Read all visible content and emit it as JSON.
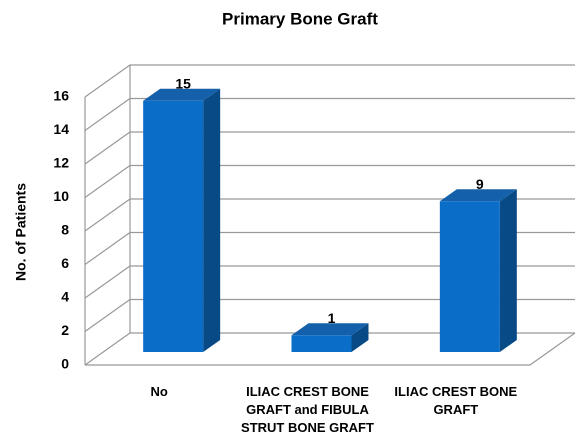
{
  "chart_data": {
    "type": "bar",
    "title": "Primary Bone Graft",
    "y_label": "No. of Patients",
    "categories": [
      "No",
      "ILIAC CREST BONE GRAFT and FIBULA STRUT BONE GRAFT",
      "ILIAC CREST BONE GRAFT"
    ],
    "values": [
      15,
      1,
      9
    ],
    "color": "#0a6ec8",
    "ylim": [
      0,
      16
    ],
    "yticks": [
      0,
      2,
      4,
      6,
      8,
      10,
      12,
      14,
      16
    ],
    "grid": true
  }
}
